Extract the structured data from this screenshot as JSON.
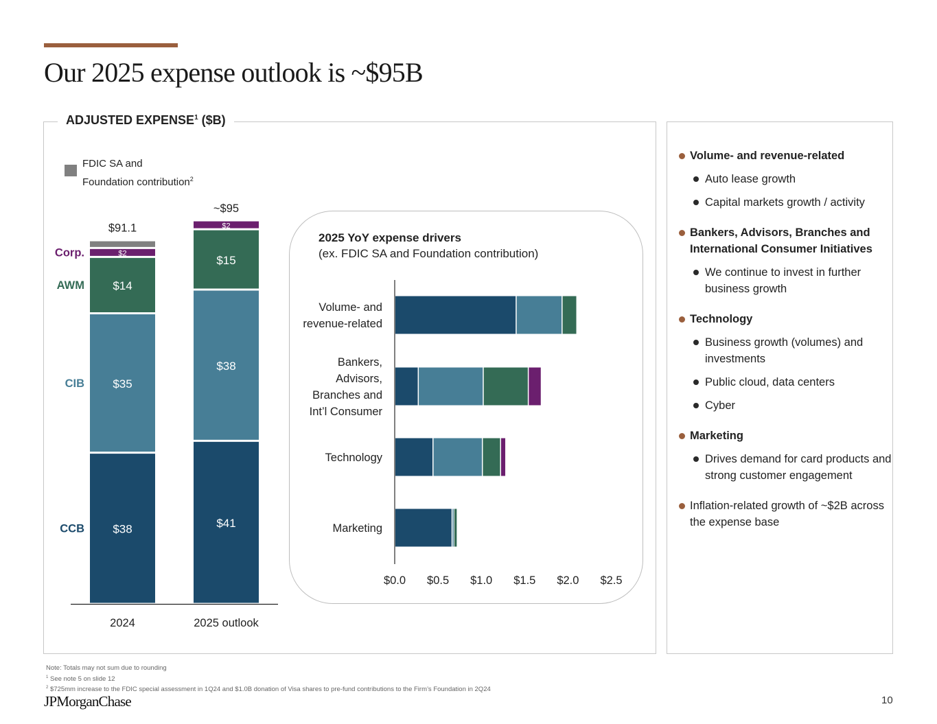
{
  "page": {
    "title": "Our 2025 expense outlook is ~$95B",
    "accent_color": "#9a5f3d",
    "page_number": "10",
    "logo_text": "JPMorganChase"
  },
  "left_panel": {
    "title": "ADJUSTED EXPENSE",
    "title_sup": "1",
    "title_suffix": " ($B)",
    "legend": {
      "label_line1": "FDIC SA and",
      "label_line2": "Foundation contribution",
      "label_sup": "2",
      "color": "#808080"
    }
  },
  "drivers_box": {
    "title": "2025 YoY expense drivers",
    "subtitle": "(ex. FDIC SA and Foundation contribution)"
  },
  "chart_data": [
    {
      "type": "bar",
      "orientation": "vertical",
      "stacked": true,
      "title": "ADJUSTED EXPENSE ($B)",
      "categories": [
        "2024",
        "2025 outlook"
      ],
      "totals": [
        "$91.1",
        "~$95"
      ],
      "series": [
        {
          "name": "CCB",
          "color": "#1b4a6b",
          "values": [
            38,
            41
          ],
          "labels": [
            "$38",
            "$41"
          ]
        },
        {
          "name": "CIB",
          "color": "#477e96",
          "values": [
            35,
            38
          ],
          "labels": [
            "$35",
            "$38"
          ]
        },
        {
          "name": "AWM",
          "color": "#346b55",
          "values": [
            14,
            15
          ],
          "labels": [
            "$14",
            "$15"
          ]
        },
        {
          "name": "Corp.",
          "color": "#6b1f6e",
          "values": [
            2,
            2
          ],
          "labels": [
            "$2",
            "$2"
          ]
        },
        {
          "name": "FDIC SA and Foundation contribution",
          "color": "#808080",
          "values": [
            1.7,
            0
          ],
          "labels": [
            "",
            ""
          ]
        }
      ],
      "segment_label_colors": {
        "CCB": "#1b4a6b",
        "CIB": "#477e96",
        "AWM": "#346b55",
        "Corp.": "#6b1f6e"
      },
      "ylim": [
        0,
        100
      ]
    },
    {
      "type": "bar",
      "orientation": "horizontal",
      "stacked": true,
      "title": "2025 YoY expense drivers",
      "subtitle": "(ex. FDIC SA and Foundation contribution)",
      "categories": [
        [
          "Volume- and",
          "revenue-related"
        ],
        [
          "Bankers,",
          "Advisors,",
          "Branches and",
          "Int’l Consumer"
        ],
        [
          "Technology"
        ],
        [
          "Marketing"
        ]
      ],
      "series": [
        {
          "name": "CCB",
          "color": "#1b4a6b",
          "values": [
            1.4,
            0.27,
            0.44,
            0.66
          ]
        },
        {
          "name": "CIB",
          "color": "#477e96",
          "values": [
            0.53,
            0.75,
            0.57,
            0.02
          ]
        },
        {
          "name": "AWM",
          "color": "#346b55",
          "values": [
            0.17,
            0.52,
            0.21,
            0.04
          ]
        },
        {
          "name": "Corp.",
          "color": "#6b1f6e",
          "values": [
            0.0,
            0.15,
            0.06,
            0.0
          ]
        }
      ],
      "xlim": [
        0,
        2.5
      ],
      "xticks": [
        "$0.0",
        "$0.5",
        "$1.0",
        "$1.5",
        "$2.0",
        "$2.5"
      ],
      "grid": false
    }
  ],
  "bullets": [
    {
      "text": "Volume- and revenue-related",
      "bold": true,
      "children": [
        "Auto lease growth",
        "Capital markets growth / activity"
      ]
    },
    {
      "text": "Bankers, Advisors, Branches and International Consumer Initiatives",
      "bold": true,
      "children": [
        "We continue to invest in further business growth"
      ]
    },
    {
      "text": "Technology",
      "bold": true,
      "children": [
        "Business growth (volumes) and investments",
        "Public cloud, data centers",
        "Cyber"
      ]
    },
    {
      "text": "Marketing",
      "bold": true,
      "children": [
        "Drives demand for card products and strong customer engagement"
      ]
    },
    {
      "text": "Inflation-related growth of ~$2B across the expense base",
      "bold": false,
      "children": []
    }
  ],
  "notes": {
    "line1": "Note: Totals may not sum due to rounding",
    "line2_sup": "1",
    "line2": " See note 5 on slide 12",
    "line3_sup": "2",
    "line3": " $725mm increase to the FDIC special assessment in 1Q24 and $1.0B donation of Visa shares to pre-fund contributions to the Firm’s Foundation in 2Q24"
  }
}
